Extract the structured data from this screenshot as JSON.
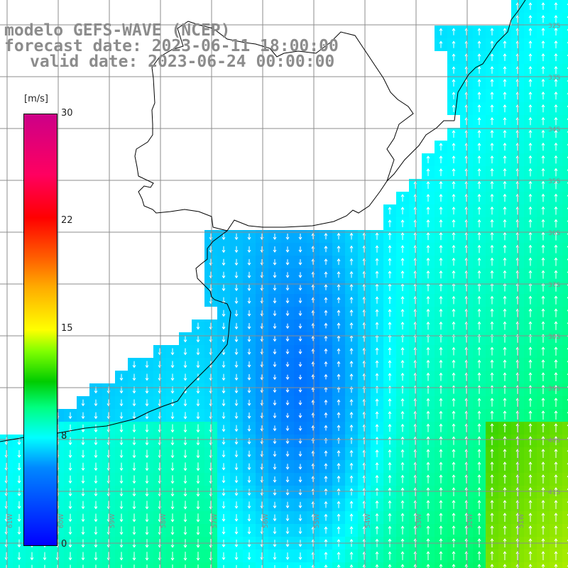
{
  "title": {
    "model": "modelo GEFS-WAVE (NCEP)",
    "forecast": "forecast date: 2023-06-11 18:00:00",
    "valid": "valid date: 2023-06-24 00:00:00"
  },
  "colorbar": {
    "unit": "[m/s]",
    "ticks": [
      {
        "label": "30",
        "value": 30
      },
      {
        "label": "22",
        "value": 22
      },
      {
        "label": "15",
        "value": 15
      },
      {
        "label": "8",
        "value": 8
      },
      {
        "label": "0",
        "value": 0
      }
    ],
    "colors": [
      "#0000ff",
      "#0088ff",
      "#00ffff",
      "#00ff80",
      "#00cc00",
      "#80ff00",
      "#ffff00",
      "#ffaa00",
      "#ff6600",
      "#ff0000",
      "#ff0060",
      "#cc0088"
    ]
  },
  "grid_labels": {
    "longitude": [
      "61W",
      "60W",
      "59W",
      "58W",
      "57W",
      "56W",
      "55W",
      "54W",
      "53W",
      "52W",
      "51W"
    ],
    "latitude": [
      "32S",
      "33S",
      "34S",
      "35S",
      "36S",
      "37S",
      "38S",
      "39S",
      "40S",
      "41S"
    ]
  },
  "map": {
    "land_color": "#ffffff",
    "coast_color": "#000000",
    "grid_color": "#8c8c8c"
  }
}
